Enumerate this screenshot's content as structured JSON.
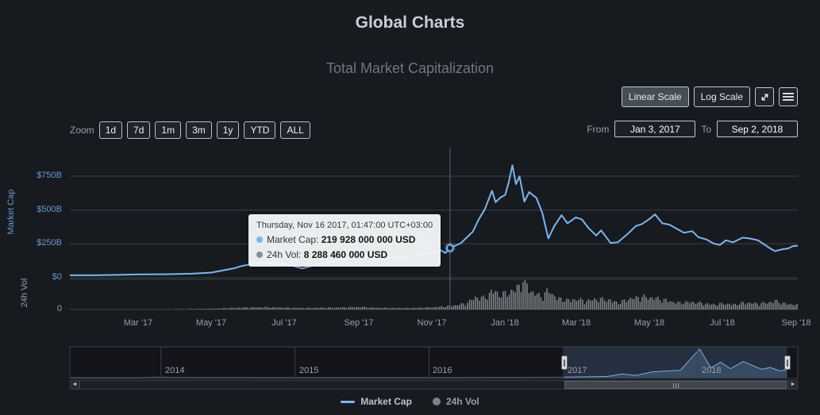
{
  "page": {
    "title": "Global Charts"
  },
  "chart": {
    "subtitle": "Total Market Capitalization",
    "toolbar": {
      "linear_scale": "Linear Scale",
      "log_scale": "Log Scale"
    },
    "zoom": {
      "label": "Zoom",
      "options": [
        "1d",
        "7d",
        "1m",
        "3m",
        "1y",
        "YTD",
        "ALL"
      ]
    },
    "range_inputs": {
      "from_label": "From",
      "from_value": "Jan 3, 2017",
      "to_label": "To",
      "to_value": "Sep 2, 2018"
    },
    "legend": [
      {
        "label": "Market Cap",
        "symbol": "line",
        "color": "#7cb5ec"
      },
      {
        "label": "24h Vol",
        "symbol": "circle",
        "color": "#7d8288"
      }
    ]
  },
  "tooltip": {
    "date": "Thursday, Nov 16 2017, 01:47:00 UTC+03:00",
    "rows": [
      {
        "label": "Market Cap:",
        "value": "219 928 000 000 USD",
        "color": "#7cb5ec"
      },
      {
        "label": "24h Vol:",
        "value": "8 288 460 000 USD",
        "color": "#8a8f94"
      }
    ]
  },
  "axes": {
    "market_cap_label": "Market Cap",
    "vol_label": "24h Vol",
    "y_ticks": [
      {
        "value_b": 750,
        "label": "$750B"
      },
      {
        "value_b": 500,
        "label": "$500B"
      },
      {
        "value_b": 250,
        "label": "$250B"
      },
      {
        "value_b": 0,
        "label": "$0"
      }
    ],
    "vol_ticks": [
      {
        "value_b": 0,
        "label": "0"
      }
    ],
    "x_ticks": [
      {
        "date": "2017-03-01",
        "label": "Mar '17"
      },
      {
        "date": "2017-05-01",
        "label": "May '17"
      },
      {
        "date": "2017-07-01",
        "label": "Jul '17"
      },
      {
        "date": "2017-09-01",
        "label": "Sep '17"
      },
      {
        "date": "2017-11-01",
        "label": "Nov '17"
      },
      {
        "date": "2018-01-01",
        "label": "Jan '18"
      },
      {
        "date": "2018-03-01",
        "label": "Mar '18"
      },
      {
        "date": "2018-05-01",
        "label": "May '18"
      },
      {
        "date": "2018-07-01",
        "label": "Jul '18"
      },
      {
        "date": "2018-09-01",
        "label": "Sep '18"
      }
    ]
  },
  "navigator": {
    "years": [
      {
        "date": "2014-01-01",
        "label": "2014"
      },
      {
        "date": "2015-01-01",
        "label": "2015"
      },
      {
        "date": "2016-01-01",
        "label": "2016"
      },
      {
        "date": "2017-01-01",
        "label": "2017"
      },
      {
        "date": "2018-01-01",
        "label": "2018"
      }
    ]
  },
  "scrollbar": {
    "left_arrow": "◄",
    "right_arrow": "►"
  },
  "icons": {
    "expand": "diagonal-expand-arrows",
    "menu": "hamburger-lines",
    "scroll_left": "◄",
    "scroll_right": "►"
  },
  "colors": {
    "background": "#171a1f",
    "accent": "#7cb5ec",
    "axis_blue": "#659ad2",
    "text_gray": "#9aa0a6",
    "grid": "#3a4046",
    "crosshair": "#5c636b",
    "volume": "#85898e",
    "title": "#c9cfd5",
    "subtitle": "#6e7781",
    "tooltip_bg": "#f4f6f7"
  },
  "chart_data": {
    "type": "line",
    "title": "Total Market Capitalization",
    "x_range": {
      "from": "2017-01-03",
      "to": "2018-09-02"
    },
    "y_axis": {
      "label": "Market Cap",
      "unit": "USD",
      "tick_values_billion": [
        0,
        250,
        500,
        750
      ],
      "approx_max_billion": 830
    },
    "volume_axis": {
      "label": "24h Vol",
      "unit": "USD",
      "approx_max_billion": 70
    },
    "series": [
      {
        "name": "Market Cap",
        "type": "line",
        "color": "#7cb5ec",
        "unit": "billion USD",
        "points": [
          [
            "2017-01-03",
            18
          ],
          [
            "2017-01-25",
            18
          ],
          [
            "2017-02-12",
            21
          ],
          [
            "2017-03-03",
            25
          ],
          [
            "2017-03-25",
            26
          ],
          [
            "2017-04-15",
            30
          ],
          [
            "2017-05-01",
            38
          ],
          [
            "2017-05-20",
            70
          ],
          [
            "2017-05-27",
            88
          ],
          [
            "2017-06-06",
            105
          ],
          [
            "2017-06-15",
            112
          ],
          [
            "2017-06-26",
            100
          ],
          [
            "2017-07-05",
            95
          ],
          [
            "2017-07-16",
            68
          ],
          [
            "2017-07-26",
            92
          ],
          [
            "2017-08-08",
            118
          ],
          [
            "2017-08-20",
            138
          ],
          [
            "2017-09-01",
            172
          ],
          [
            "2017-09-08",
            158
          ],
          [
            "2017-09-15",
            128
          ],
          [
            "2017-09-25",
            142
          ],
          [
            "2017-10-08",
            150
          ],
          [
            "2017-10-20",
            168
          ],
          [
            "2017-11-01",
            185
          ],
          [
            "2017-11-08",
            205
          ],
          [
            "2017-11-12",
            182
          ],
          [
            "2017-11-16",
            220
          ],
          [
            "2017-11-25",
            255
          ],
          [
            "2017-12-05",
            340
          ],
          [
            "2017-12-10",
            432
          ],
          [
            "2017-12-15",
            505
          ],
          [
            "2017-12-21",
            642
          ],
          [
            "2017-12-24",
            558
          ],
          [
            "2017-12-28",
            592
          ],
          [
            "2018-01-01",
            612
          ],
          [
            "2018-01-04",
            705
          ],
          [
            "2018-01-07",
            830
          ],
          [
            "2018-01-10",
            692
          ],
          [
            "2018-01-13",
            748
          ],
          [
            "2018-01-17",
            562
          ],
          [
            "2018-01-21",
            632
          ],
          [
            "2018-01-27",
            590
          ],
          [
            "2018-02-01",
            478
          ],
          [
            "2018-02-06",
            290
          ],
          [
            "2018-02-11",
            382
          ],
          [
            "2018-02-17",
            462
          ],
          [
            "2018-02-22",
            402
          ],
          [
            "2018-03-01",
            446
          ],
          [
            "2018-03-06",
            430
          ],
          [
            "2018-03-12",
            362
          ],
          [
            "2018-03-18",
            312
          ],
          [
            "2018-03-22",
            350
          ],
          [
            "2018-03-30",
            256
          ],
          [
            "2018-04-05",
            262
          ],
          [
            "2018-04-13",
            322
          ],
          [
            "2018-04-20",
            382
          ],
          [
            "2018-04-25",
            396
          ],
          [
            "2018-05-01",
            432
          ],
          [
            "2018-05-06",
            468
          ],
          [
            "2018-05-12",
            402
          ],
          [
            "2018-05-18",
            392
          ],
          [
            "2018-05-24",
            362
          ],
          [
            "2018-05-30",
            332
          ],
          [
            "2018-06-06",
            344
          ],
          [
            "2018-06-11",
            300
          ],
          [
            "2018-06-18",
            282
          ],
          [
            "2018-06-24",
            252
          ],
          [
            "2018-06-29",
            242
          ],
          [
            "2018-07-04",
            276
          ],
          [
            "2018-07-10",
            262
          ],
          [
            "2018-07-18",
            296
          ],
          [
            "2018-07-24",
            290
          ],
          [
            "2018-07-31",
            276
          ],
          [
            "2018-08-05",
            246
          ],
          [
            "2018-08-09",
            222
          ],
          [
            "2018-08-14",
            196
          ],
          [
            "2018-08-20",
            210
          ],
          [
            "2018-08-25",
            216
          ],
          [
            "2018-08-29",
            234
          ],
          [
            "2018-09-02",
            236
          ]
        ]
      },
      {
        "name": "24h Vol",
        "type": "bar",
        "color": "#85898e",
        "unit": "billion USD",
        "points": [
          [
            "2017-01-03",
            0.25
          ],
          [
            "2017-02-01",
            0.35
          ],
          [
            "2017-03-01",
            0.5
          ],
          [
            "2017-04-01",
            0.8
          ],
          [
            "2017-05-01",
            1.8
          ],
          [
            "2017-05-25",
            4.5
          ],
          [
            "2017-06-15",
            5.5
          ],
          [
            "2017-07-16",
            3.5
          ],
          [
            "2017-08-20",
            5.0
          ],
          [
            "2017-09-02",
            6.0
          ],
          [
            "2017-09-15",
            4.0
          ],
          [
            "2017-10-10",
            3.5
          ],
          [
            "2017-11-01",
            5.0
          ],
          [
            "2017-11-16",
            8.3
          ],
          [
            "2017-11-29",
            14
          ],
          [
            "2017-12-08",
            30
          ],
          [
            "2017-12-15",
            27
          ],
          [
            "2017-12-22",
            46
          ],
          [
            "2017-12-28",
            34
          ],
          [
            "2018-01-05",
            42
          ],
          [
            "2018-01-09",
            46
          ],
          [
            "2018-01-17",
            70
          ],
          [
            "2018-01-23",
            42
          ],
          [
            "2018-02-01",
            30
          ],
          [
            "2018-02-06",
            46
          ],
          [
            "2018-02-14",
            26
          ],
          [
            "2018-02-22",
            22
          ],
          [
            "2018-03-01",
            25
          ],
          [
            "2018-03-10",
            20
          ],
          [
            "2018-03-19",
            26
          ],
          [
            "2018-03-30",
            22
          ],
          [
            "2018-04-06",
            15
          ],
          [
            "2018-04-13",
            25
          ],
          [
            "2018-04-25",
            30
          ],
          [
            "2018-05-05",
            28
          ],
          [
            "2018-05-15",
            22
          ],
          [
            "2018-05-25",
            16
          ],
          [
            "2018-06-05",
            18
          ],
          [
            "2018-06-12",
            16
          ],
          [
            "2018-06-22",
            12
          ],
          [
            "2018-07-02",
            14
          ],
          [
            "2018-07-12",
            12
          ],
          [
            "2018-07-20",
            17
          ],
          [
            "2018-07-30",
            14
          ],
          [
            "2018-08-08",
            16
          ],
          [
            "2018-08-14",
            21
          ],
          [
            "2018-08-22",
            14
          ],
          [
            "2018-08-29",
            12
          ],
          [
            "2018-09-02",
            11
          ]
        ]
      }
    ],
    "focus_point": {
      "date": "2017-11-16",
      "time_label": "Thursday, Nov 16 2017, 01:47:00 UTC+03:00",
      "market_cap_usd": "219 928 000 000",
      "vol_24h_usd": "8 288 460 000",
      "market_cap_billion": 219.9,
      "vol_billion": 8.3
    },
    "navigator": {
      "x_range": {
        "from": "2013-04-28",
        "to": "2018-10-01"
      },
      "selection": {
        "from": "2017-01-03",
        "to": "2018-09-02"
      },
      "points": [
        [
          "2013-04-28",
          1.5
        ],
        [
          "2013-07-01",
          1.2
        ],
        [
          "2013-10-01",
          2.5
        ],
        [
          "2013-11-25",
          8
        ],
        [
          "2013-12-10",
          15
        ],
        [
          "2014-01-06",
          14
        ],
        [
          "2014-02-01",
          11
        ],
        [
          "2014-04-01",
          9
        ],
        [
          "2014-07-01",
          8.5
        ],
        [
          "2014-10-01",
          5.5
        ],
        [
          "2015-01-14",
          3.8
        ],
        [
          "2015-04-01",
          4.8
        ],
        [
          "2015-07-01",
          4.5
        ],
        [
          "2015-10-01",
          4.2
        ],
        [
          "2016-01-01",
          7
        ],
        [
          "2016-04-01",
          8
        ],
        [
          "2016-06-18",
          12.5
        ],
        [
          "2016-09-01",
          12
        ],
        [
          "2016-12-01",
          14
        ],
        [
          "2017-01-03",
          18
        ],
        [
          "2017-03-01",
          25
        ],
        [
          "2017-05-01",
          38
        ],
        [
          "2017-06-10",
          110
        ],
        [
          "2017-07-16",
          68
        ],
        [
          "2017-09-01",
          170
        ],
        [
          "2017-11-16",
          220
        ],
        [
          "2017-12-21",
          640
        ],
        [
          "2018-01-07",
          830
        ],
        [
          "2018-02-06",
          290
        ],
        [
          "2018-03-05",
          450
        ],
        [
          "2018-04-01",
          260
        ],
        [
          "2018-05-05",
          470
        ],
        [
          "2018-06-24",
          250
        ],
        [
          "2018-07-18",
          295
        ],
        [
          "2018-08-14",
          195
        ],
        [
          "2018-09-02",
          235
        ]
      ]
    }
  }
}
